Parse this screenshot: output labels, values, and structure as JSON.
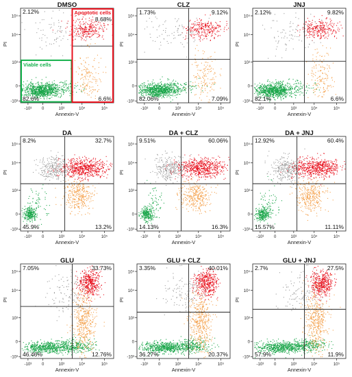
{
  "axes": {
    "xlabel": "Annexin-V",
    "ylabel": "PI",
    "x_ticks": [
      "-10³",
      "0",
      "10³",
      "10⁴",
      "10⁵"
    ],
    "y_ticks": [
      "10⁵",
      "10⁴",
      "10³",
      "0",
      "-10³"
    ]
  },
  "gate_labels": {
    "apoptotic": "Apoptotic cells",
    "viable": "Viable cells"
  },
  "colors": {
    "viable": "#1aa64a",
    "late_apoptotic": "#e8121e",
    "early_apoptotic": "#f4a04a",
    "necrotic": "#9a9a9a",
    "gate_red": "#e8121e",
    "gate_green": "#12b04a"
  },
  "chart_data": [
    {
      "type": "scatter",
      "title": "DMSO",
      "quadrants": {
        "upper_left": "2.12%",
        "upper_right": "8.68%",
        "lower_left": "82.6%",
        "lower_right": "6.6%"
      },
      "gate_x": 0.555,
      "gate_y": 0.47,
      "split_upper_y": true
    },
    {
      "type": "scatter",
      "title": "CLZ",
      "quadrants": {
        "upper_left": "1.73%",
        "upper_right": "9.12%",
        "lower_left": "82.06%",
        "lower_right": "7.09%"
      },
      "gate_x": 0.555,
      "gate_y": 0.54
    },
    {
      "type": "scatter",
      "title": "JNJ",
      "quadrants": {
        "upper_left": "2.12%",
        "upper_right": "9.82%",
        "lower_left": "82.1%",
        "lower_right": "6.6%"
      },
      "gate_x": 0.555,
      "gate_y": 0.56
    },
    {
      "type": "scatter",
      "title": "DA",
      "quadrants": {
        "upper_left": "8.2%",
        "upper_right": "32.7%",
        "lower_left": "45.9%",
        "lower_right": "13.2%"
      },
      "gate_x": 0.475,
      "gate_y": 0.5
    },
    {
      "type": "scatter",
      "title": "DA + CLZ",
      "quadrants": {
        "upper_left": "9.51%",
        "upper_right": "60.06%",
        "lower_left": "14.13%",
        "lower_right": "16.3%"
      },
      "gate_x": 0.475,
      "gate_y": 0.5
    },
    {
      "type": "scatter",
      "title": "DA + JNJ",
      "quadrants": {
        "upper_left": "12.92%",
        "upper_right": "60.4%",
        "lower_left": "15.57%",
        "lower_right": "11.11%"
      },
      "gate_x": 0.475,
      "gate_y": 0.5
    },
    {
      "type": "scatter",
      "title": "GLU",
      "quadrants": {
        "upper_left": "7.05%",
        "upper_right": "33.73%",
        "lower_left": "46.46%",
        "lower_right": "12.76%"
      },
      "gate_x": 0.555,
      "gate_y": 0.45
    },
    {
      "type": "scatter",
      "title": "GLU + CLZ",
      "quadrants": {
        "upper_left": "3.35%",
        "upper_right": "40.01%",
        "lower_left": "36.27%",
        "lower_right": "20.37%"
      },
      "gate_x": 0.555,
      "gate_y": 0.51
    },
    {
      "type": "scatter",
      "title": "GLU + JNJ",
      "quadrants": {
        "upper_left": "2.7%",
        "upper_right": "27.5%",
        "lower_left": "57.9%",
        "lower_right": "11.9%"
      },
      "gate_x": 0.555,
      "gate_y": 0.48
    }
  ]
}
